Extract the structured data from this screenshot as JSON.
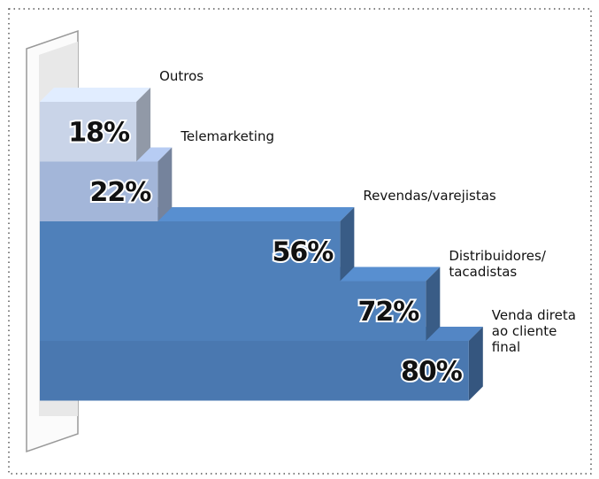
{
  "chart_data": {
    "type": "bar3d",
    "categories": [
      "Outros",
      "Telemarketing",
      "Revendas/varejistas",
      "Distribuidores/\ntacadistas",
      "Venda direta\nao cliente\nfinal"
    ],
    "values": [
      18,
      22,
      56,
      72,
      80
    ],
    "value_labels": [
      "18%",
      "22%",
      "56%",
      "72%",
      "80%"
    ],
    "colors": [
      "#c9d4e8",
      "#a3b6d9",
      "#4f80ba",
      "#4f80ba",
      "#4a78b0"
    ]
  }
}
